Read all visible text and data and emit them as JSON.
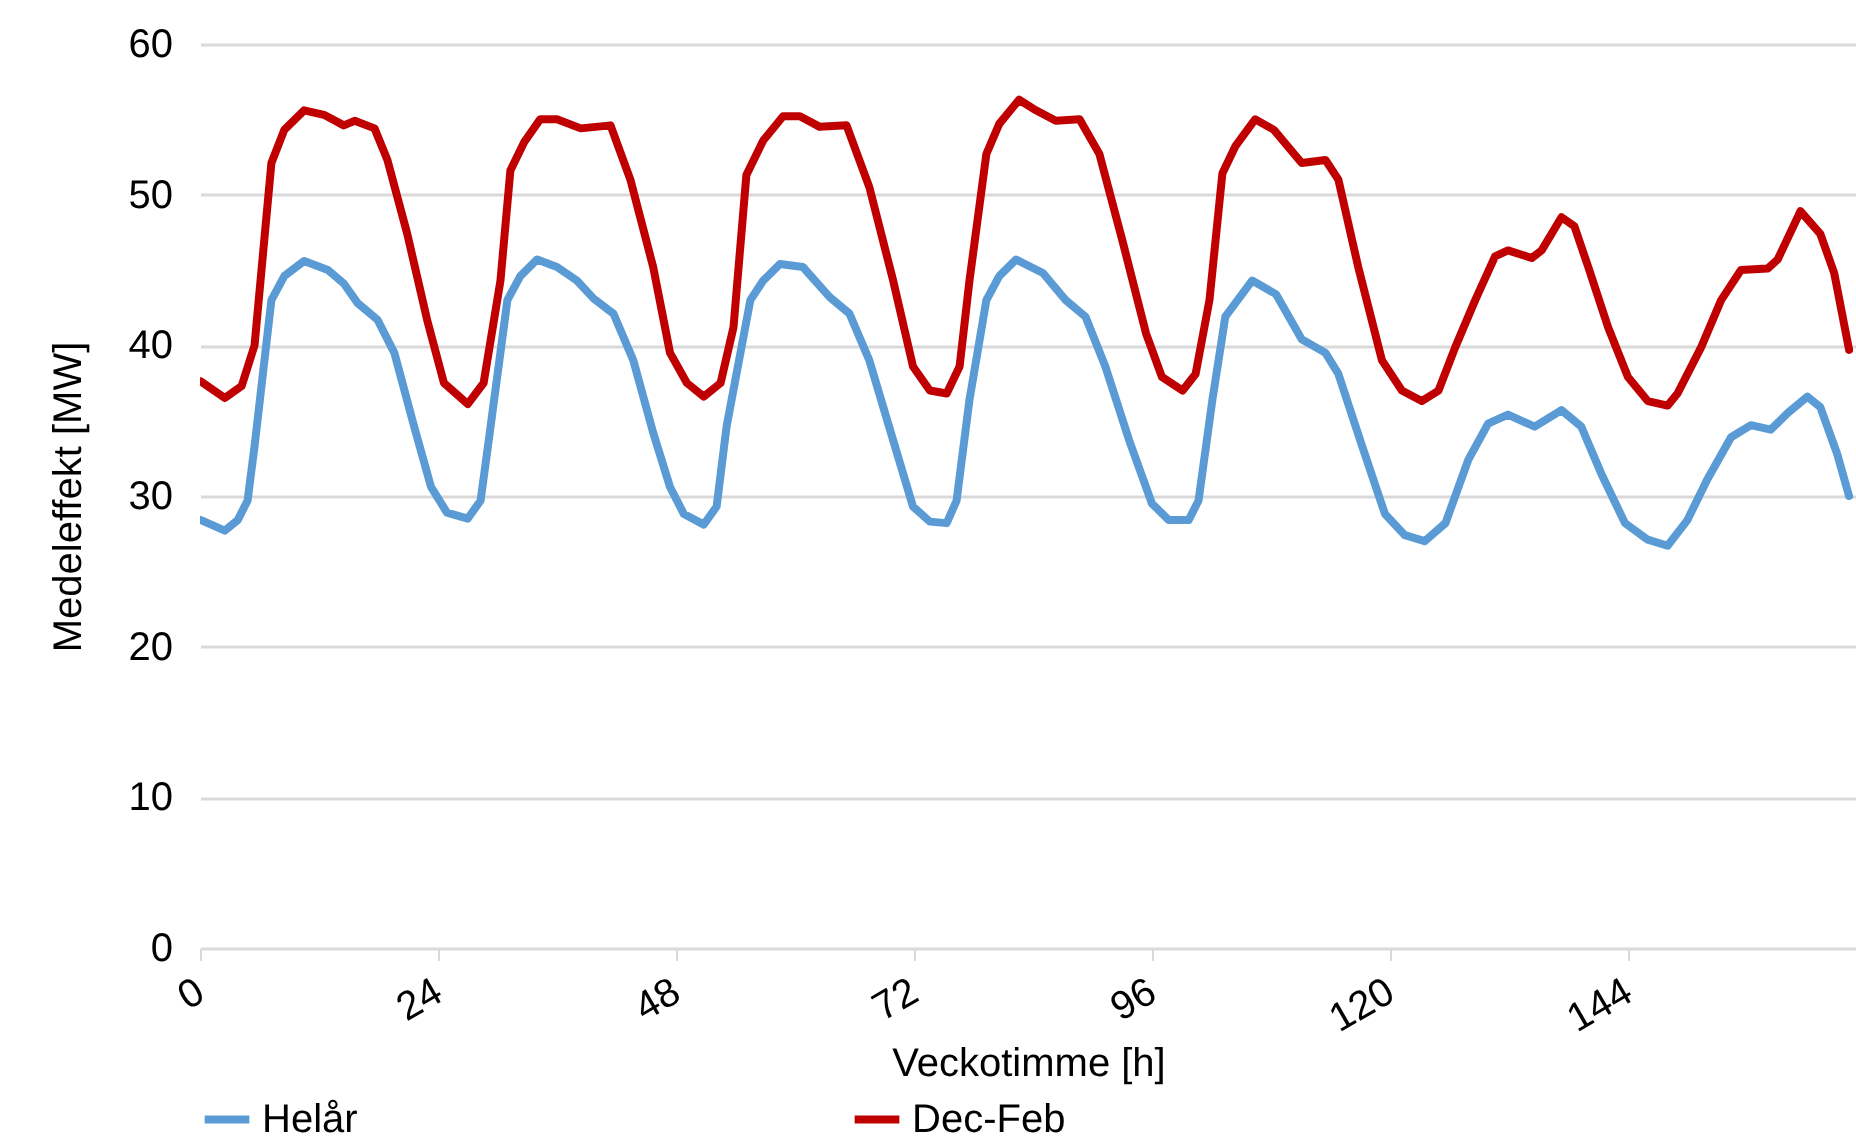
{
  "chart_data": {
    "type": "line",
    "xlabel": "Veckotimme [h]",
    "ylabel": "Medeleffekt [MW]",
    "xlim": [
      0,
      167
    ],
    "xticks": [
      0,
      24,
      48,
      72,
      96,
      120,
      144
    ],
    "ylim": [
      0,
      60
    ],
    "yticks": [
      0,
      10,
      20,
      30,
      40,
      50,
      60
    ],
    "grid": "y",
    "legend": "bottom",
    "line_style": "solid",
    "marker": "none",
    "series": [
      {
        "name": "Helår",
        "color": "#5b9bd5",
        "x": [
          0.1,
          2.5,
          3.8,
          4.8,
          5.5,
          7.2,
          8.5,
          10.5,
          12.9,
          14.5,
          15.9,
          17.9,
          19.6,
          21.6,
          23.3,
          24.9,
          27,
          28.3,
          29.3,
          31,
          32.3,
          34,
          36,
          38,
          39.7,
          41.7,
          43.7,
          45.7,
          47.4,
          48.8,
          50.8,
          52.1,
          53.1,
          55.5,
          56.8,
          58.5,
          60.8,
          63.5,
          65.5,
          67.5,
          69.9,
          71.9,
          73.6,
          75.3,
          76.3,
          77.6,
          79.3,
          80.6,
          82.3,
          85,
          87.3,
          89.3,
          91.3,
          93.7,
          96,
          97.7,
          99.7,
          100.7,
          102.1,
          103.4,
          106.1,
          108.5,
          111.1,
          113.5,
          114.8,
          117.2,
          119.5,
          121.5,
          123.5,
          125.6,
          127.9,
          129.9,
          131.9,
          134.6,
          137.3,
          139.3,
          141.3,
          143.7,
          146,
          148,
          150,
          152,
          154.4,
          156.4,
          158.4,
          160.1,
          162.1,
          163.4,
          165.1,
          166.3
        ],
        "values": [
          28.4,
          27.7,
          28.4,
          29.7,
          33.3,
          43,
          44.6,
          45.6,
          45,
          44.1,
          42.8,
          41.7,
          39.5,
          34.6,
          30.6,
          28.9,
          28.5,
          29.7,
          34.6,
          43,
          44.6,
          45.7,
          45.2,
          44.3,
          43.1,
          42.1,
          39,
          34.2,
          30.6,
          28.8,
          28.1,
          29.3,
          34.6,
          43,
          44.3,
          45.4,
          45.2,
          43.2,
          42.1,
          39,
          33.7,
          29.3,
          28.3,
          28.2,
          29.7,
          36.4,
          43,
          44.6,
          45.7,
          44.8,
          43,
          41.9,
          38.6,
          33.7,
          29.5,
          28.4,
          28.4,
          29.7,
          36.4,
          41.9,
          44.3,
          43.4,
          40.4,
          39.5,
          38.1,
          33.3,
          28.8,
          27.4,
          27,
          28.2,
          32.4,
          34.8,
          35.4,
          34.6,
          35.7,
          34.6,
          31.5,
          28.2,
          27.1,
          26.7,
          28.4,
          31.1,
          33.9,
          34.7,
          34.4,
          35.5,
          36.6,
          35.9,
          32.8,
          30
        ]
      },
      {
        "name": "Dec-Feb",
        "color": "#c00000",
        "x": [
          0.1,
          2.5,
          4.2,
          5.5,
          7.2,
          8.5,
          10.5,
          12.5,
          14.5,
          15.6,
          17.6,
          18.9,
          20.9,
          22.9,
          24.6,
          27,
          28.6,
          30.3,
          31.3,
          32.7,
          34.3,
          36,
          38.4,
          41.4,
          43.4,
          45.7,
          47.4,
          49.1,
          50.8,
          52.5,
          53.8,
          55.1,
          56.8,
          58.8,
          60.5,
          62.5,
          65.2,
          67.5,
          69.9,
          71.9,
          73.6,
          75.3,
          76.6,
          77.6,
          79.3,
          80.6,
          82.6,
          84.3,
          86.3,
          88.7,
          90.7,
          93,
          95.4,
          97,
          99.1,
          100.4,
          101.8,
          103.1,
          104.4,
          106.4,
          108.3,
          111.1,
          113.5,
          114.8,
          116.8,
          119.2,
          121.2,
          123.2,
          124.9,
          126.6,
          128.6,
          130.6,
          131.9,
          134.3,
          135.3,
          137.3,
          138.6,
          140,
          142,
          144,
          146,
          148,
          149,
          151.4,
          153.4,
          155.4,
          158.1,
          159.1,
          161.4,
          163.4,
          164.8,
          166.3
        ],
        "values": [
          37.6,
          36.5,
          37.3,
          40,
          52.1,
          54.3,
          55.6,
          55.3,
          54.6,
          54.9,
          54.4,
          52.3,
          47.4,
          41.7,
          37.5,
          36.1,
          37.5,
          44.3,
          51.6,
          53.5,
          55,
          55,
          54.4,
          54.6,
          51,
          45.2,
          39.5,
          37.5,
          36.6,
          37.5,
          41.2,
          51.3,
          53.6,
          55.2,
          55.2,
          54.5,
          54.6,
          50.5,
          44.3,
          38.6,
          37,
          36.8,
          38.6,
          44.3,
          52.7,
          54.7,
          56.3,
          55.6,
          54.9,
          55,
          52.7,
          47,
          40.8,
          37.9,
          37,
          38.1,
          43,
          51.4,
          53.2,
          55,
          54.3,
          52.1,
          52.3,
          51,
          45.2,
          39,
          37,
          36.3,
          37,
          39.9,
          43,
          45.9,
          46.3,
          45.8,
          46.3,
          48.5,
          47.9,
          45.2,
          41.2,
          37.9,
          36.3,
          36,
          36.8,
          39.9,
          43,
          45,
          45.1,
          45.7,
          48.9,
          47.4,
          44.8,
          39.7
        ]
      }
    ]
  }
}
